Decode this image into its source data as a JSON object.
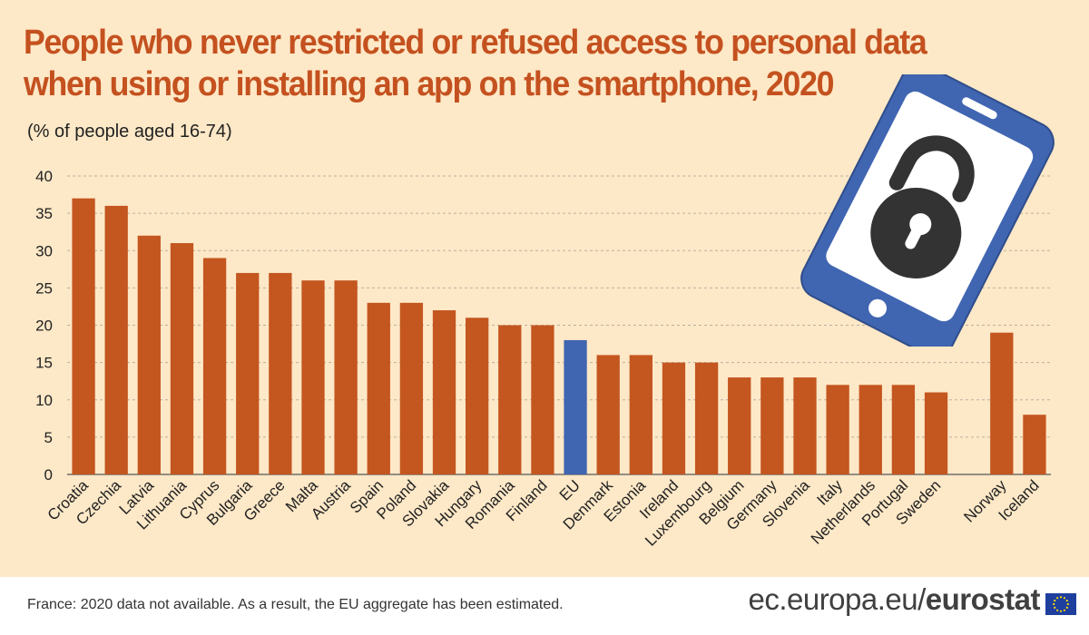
{
  "chart_data": {
    "type": "bar",
    "title": "People who never restricted or refused access to personal data when using or installing an app on the smartphone, 2020",
    "title_lines": [
      "People who never restricted or refused access to personal data",
      "when using or installing an app on the smartphone, 2020"
    ],
    "subtitle": "(% of people aged 16-74)",
    "categories": [
      "Croatia",
      "Czechia",
      "Latvia",
      "Lithuania",
      "Cyprus",
      "Bulgaria",
      "Greece",
      "Malta",
      "Austria",
      "Spain",
      "Poland",
      "Slovakia",
      "Hungary",
      "Romania",
      "Finland",
      "EU",
      "Denmark",
      "Estonia",
      "Ireland",
      "Luxembourg",
      "Belgium",
      "Germany",
      "Slovenia",
      "Italy",
      "Netherlands",
      "Portugal",
      "Sweden",
      "Norway",
      "Iceland"
    ],
    "values": [
      37,
      36,
      32,
      31,
      29,
      27,
      27,
      26,
      26,
      23,
      23,
      22,
      21,
      20,
      20,
      18,
      16,
      16,
      15,
      15,
      13,
      13,
      13,
      12,
      12,
      12,
      11,
      19,
      8
    ],
    "highlight": "EU",
    "gap_before": [
      "Norway"
    ],
    "y_ticks": [
      0,
      5,
      10,
      15,
      20,
      25,
      30,
      35,
      40
    ],
    "ylim": [
      0,
      40
    ],
    "grid": true,
    "xlabel": "",
    "ylabel": "",
    "colors": {
      "bar": "#c4561f",
      "highlight": "#4065b1",
      "grid": "#b9b1a3"
    }
  },
  "footer": {
    "note": "France: 2020 data not available. As a result, the EU aggregate has been estimated.",
    "brand_domain": "ec.europa.eu/",
    "brand_name": "eurostat"
  },
  "illustration": {
    "icon": "smartphone-unlocked-padlock-icon",
    "phone_color": "#4065b1",
    "lock_color": "#333333"
  }
}
